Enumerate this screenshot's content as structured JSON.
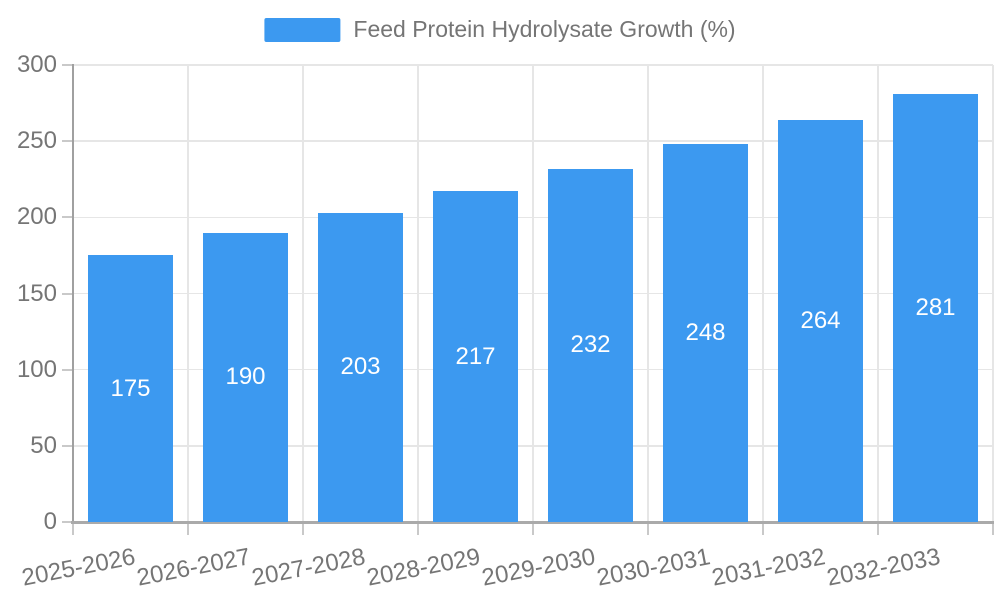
{
  "chart_data": {
    "type": "bar",
    "title": "Feed Protein Hydrolysate Growth (%)",
    "legend_position": "top",
    "categories": [
      "2025-2026",
      "2026-2027",
      "2027-2028",
      "2028-2029",
      "2029-2030",
      "2030-2031",
      "2031-2032",
      "2032-2033"
    ],
    "values": [
      175,
      190,
      203,
      217,
      232,
      248,
      264,
      281
    ],
    "xlabel": "",
    "ylabel": "",
    "ylim": [
      0,
      300
    ],
    "yticks": [
      0,
      50,
      100,
      150,
      200,
      250,
      300
    ],
    "grid": true,
    "bar_color": "#3C99F0",
    "value_label_color": "#FFFFFF",
    "tick_label_color": "#757575",
    "x_label_rotation_deg": -11
  }
}
